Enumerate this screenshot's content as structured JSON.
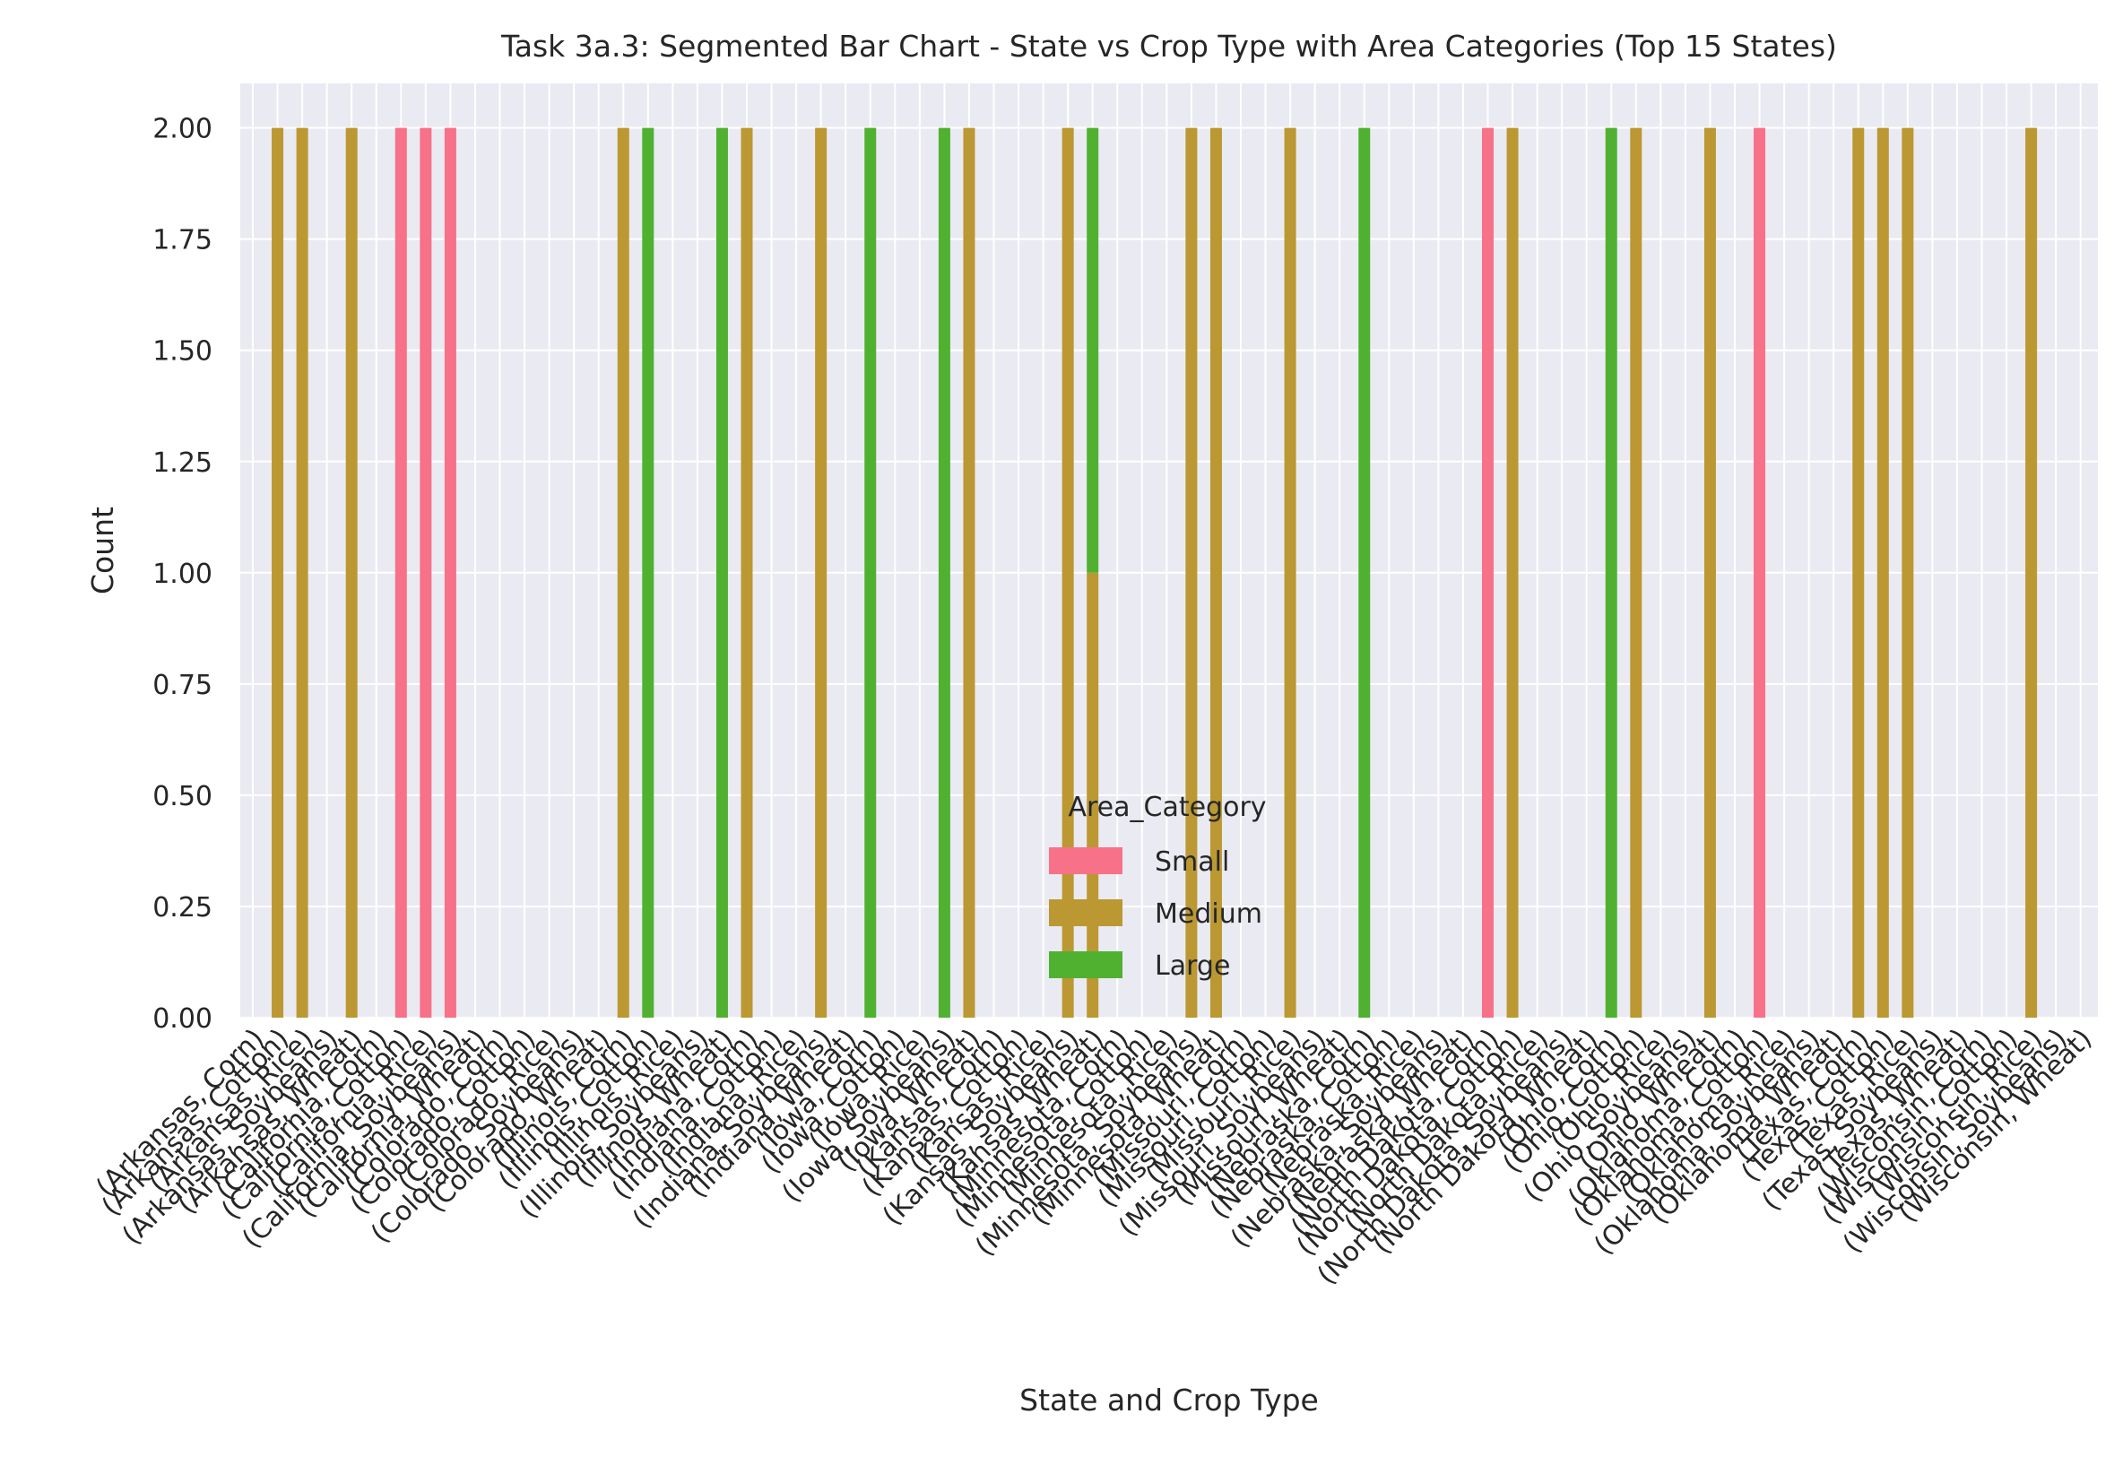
{
  "chart_data": {
    "type": "bar",
    "stacked": true,
    "title": "Task 3a.3: Segmented Bar Chart - State vs Crop Type with Area Categories (Top 15 States)",
    "xlabel": "State and Crop Type",
    "ylabel": "Count",
    "ylim": [
      0,
      2.1
    ],
    "yticks": [
      "0.00",
      "0.25",
      "0.50",
      "0.75",
      "1.00",
      "1.25",
      "1.50",
      "1.75",
      "2.00"
    ],
    "grid": true,
    "legend": {
      "title": "Area_Category",
      "position": "lower center"
    },
    "categories": [
      "(Arkansas, Corn)",
      "(Arkansas, Cotton)",
      "(Arkansas, Rice)",
      "(Arkansas, Soybeans)",
      "(Arkansas, Wheat)",
      "(California, Corn)",
      "(California, Cotton)",
      "(California, Rice)",
      "(California, Soybeans)",
      "(California, Wheat)",
      "(Colorado, Corn)",
      "(Colorado, Cotton)",
      "(Colorado, Rice)",
      "(Colorado, Soybeans)",
      "(Colorado, Wheat)",
      "(Illinois, Corn)",
      "(Illinois, Cotton)",
      "(Illinois, Rice)",
      "(Illinois, Soybeans)",
      "(Illinois, Wheat)",
      "(Indiana, Corn)",
      "(Indiana, Cotton)",
      "(Indiana, Rice)",
      "(Indiana, Soybeans)",
      "(Indiana, Wheat)",
      "(Iowa, Corn)",
      "(Iowa, Cotton)",
      "(Iowa, Rice)",
      "(Iowa, Soybeans)",
      "(Iowa, Wheat)",
      "(Kansas, Corn)",
      "(Kansas, Cotton)",
      "(Kansas, Rice)",
      "(Kansas, Soybeans)",
      "(Kansas, Wheat)",
      "(Minnesota, Corn)",
      "(Minnesota, Cotton)",
      "(Minnesota, Rice)",
      "(Minnesota, Soybeans)",
      "(Minnesota, Wheat)",
      "(Missouri, Corn)",
      "(Missouri, Cotton)",
      "(Missouri, Rice)",
      "(Missouri, Soybeans)",
      "(Missouri, Wheat)",
      "(Nebraska, Corn)",
      "(Nebraska, Cotton)",
      "(Nebraska, Rice)",
      "(Nebraska, Soybeans)",
      "(Nebraska, Wheat)",
      "(North Dakota, Corn)",
      "(North Dakota, Cotton)",
      "(North Dakota, Rice)",
      "(North Dakota, Soybeans)",
      "(North Dakota, Wheat)",
      "(Ohio, Corn)",
      "(Ohio, Cotton)",
      "(Ohio, Rice)",
      "(Ohio, Soybeans)",
      "(Ohio, Wheat)",
      "(Oklahoma, Corn)",
      "(Oklahoma, Cotton)",
      "(Oklahoma, Rice)",
      "(Oklahoma, Soybeans)",
      "(Oklahoma, Wheat)",
      "(Texas, Corn)",
      "(Texas, Cotton)",
      "(Texas, Rice)",
      "(Texas, Soybeans)",
      "(Texas, Wheat)",
      "(Wisconsin, Corn)",
      "(Wisconsin, Cotton)",
      "(Wisconsin, Rice)",
      "(Wisconsin, Soybeans)",
      "(Wisconsin, Wheat)"
    ],
    "series": [
      {
        "name": "Small",
        "color": "#f77189",
        "values": [
          0,
          0,
          0,
          0,
          0,
          0,
          2,
          2,
          2,
          0,
          0,
          0,
          0,
          0,
          0,
          0,
          0,
          0,
          0,
          0,
          0,
          0,
          0,
          0,
          0,
          0,
          0,
          0,
          0,
          0,
          0,
          0,
          0,
          0,
          0,
          0,
          0,
          0,
          0,
          0,
          0,
          0,
          0,
          0,
          0,
          0,
          0,
          0,
          0,
          0,
          2,
          0,
          0,
          0,
          0,
          0,
          0,
          0,
          0,
          0,
          0,
          2,
          0,
          0,
          0,
          0,
          0,
          0,
          0,
          0,
          0,
          0,
          0,
          0,
          0
        ]
      },
      {
        "name": "Medium",
        "color": "#bb9832",
        "values": [
          0,
          2,
          2,
          0,
          2,
          0,
          0,
          0,
          0,
          0,
          0,
          0,
          0,
          0,
          0,
          2,
          0,
          0,
          0,
          0,
          2,
          0,
          0,
          2,
          0,
          0,
          0,
          0,
          0,
          2,
          0,
          0,
          0,
          2,
          1,
          0,
          0,
          0,
          2,
          2,
          0,
          0,
          2,
          0,
          0,
          0,
          0,
          0,
          0,
          0,
          0,
          2,
          0,
          0,
          0,
          0,
          2,
          0,
          0,
          2,
          0,
          0,
          0,
          0,
          0,
          2,
          2,
          2,
          0,
          0,
          0,
          0,
          2,
          0,
          0
        ]
      },
      {
        "name": "Large",
        "color": "#50b131",
        "values": [
          0,
          0,
          0,
          0,
          0,
          0,
          0,
          0,
          0,
          0,
          0,
          0,
          0,
          0,
          0,
          0,
          2,
          0,
          0,
          2,
          0,
          0,
          0,
          0,
          0,
          2,
          0,
          0,
          2,
          0,
          0,
          0,
          0,
          0,
          1,
          0,
          0,
          0,
          0,
          0,
          0,
          0,
          0,
          0,
          0,
          2,
          0,
          0,
          0,
          0,
          0,
          0,
          0,
          0,
          0,
          2,
          0,
          0,
          0,
          0,
          0,
          0,
          0,
          0,
          0,
          0,
          0,
          0,
          0,
          0,
          0,
          0,
          0,
          0,
          0
        ]
      }
    ]
  }
}
